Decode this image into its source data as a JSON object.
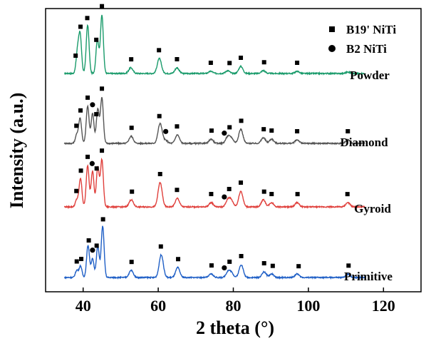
{
  "chart_data": {
    "type": "line",
    "xlabel": "2 theta (°)",
    "ylabel": "Intensity (a.u.)",
    "xlim": [
      30,
      130
    ],
    "xticks": [
      40,
      60,
      80,
      100,
      120
    ],
    "y_ticks_shown": false,
    "legend": {
      "placement": "top-right",
      "entries": [
        {
          "marker": "square",
          "label": "B19' NiTi"
        },
        {
          "marker": "circle",
          "label": "B2 NiTi"
        }
      ]
    },
    "series": [
      {
        "name": "Powder",
        "color": "#1a9b6b",
        "peaks": [
          [
            38.5,
            30
          ],
          [
            39.2,
            52
          ],
          [
            41.2,
            68
          ],
          [
            43.8,
            48
          ],
          [
            45.0,
            82
          ],
          [
            52.7,
            8
          ],
          [
            60.3,
            21
          ],
          [
            65.0,
            8
          ],
          [
            74.0,
            3
          ],
          [
            78.5,
            4
          ],
          [
            82.0,
            10
          ],
          [
            88.0,
            4
          ],
          [
            97.0,
            3
          ],
          [
            110.5,
            2
          ]
        ],
        "markers": [
          {
            "x": 38.0,
            "type": "square"
          },
          {
            "x": 39.3,
            "type": "square"
          },
          {
            "x": 41.1,
            "type": "square"
          },
          {
            "x": 43.5,
            "type": "square"
          },
          {
            "x": 45.0,
            "type": "square"
          },
          {
            "x": 52.8,
            "type": "square"
          },
          {
            "x": 60.2,
            "type": "square"
          },
          {
            "x": 65.0,
            "type": "square"
          },
          {
            "x": 74.0,
            "type": "square"
          },
          {
            "x": 79.0,
            "type": "square"
          },
          {
            "x": 82.0,
            "type": "square"
          },
          {
            "x": 88.2,
            "type": "square"
          },
          {
            "x": 97.0,
            "type": "square"
          }
        ]
      },
      {
        "name": "Diamond",
        "color": "#555555",
        "peaks": [
          [
            38.3,
            12
          ],
          [
            39.2,
            35
          ],
          [
            41.2,
            52
          ],
          [
            42.5,
            42
          ],
          [
            43.9,
            48
          ],
          [
            45.0,
            64
          ],
          [
            52.8,
            10
          ],
          [
            60.5,
            28
          ],
          [
            62.0,
            4
          ],
          [
            65.1,
            12
          ],
          [
            74.1,
            6
          ],
          [
            78.5,
            9
          ],
          [
            79.5,
            7
          ],
          [
            82.0,
            20
          ],
          [
            88.0,
            8
          ],
          [
            90.2,
            6
          ],
          [
            97.0,
            5
          ],
          [
            110.5,
            5
          ]
        ],
        "markers": [
          {
            "x": 38.2,
            "type": "square"
          },
          {
            "x": 39.3,
            "type": "square"
          },
          {
            "x": 41.2,
            "type": "square"
          },
          {
            "x": 42.5,
            "type": "circle"
          },
          {
            "x": 43.5,
            "type": "square"
          },
          {
            "x": 45.0,
            "type": "square"
          },
          {
            "x": 52.9,
            "type": "square"
          },
          {
            "x": 60.3,
            "type": "square"
          },
          {
            "x": 62.0,
            "type": "circle"
          },
          {
            "x": 65.0,
            "type": "square"
          },
          {
            "x": 74.2,
            "type": "square"
          },
          {
            "x": 77.6,
            "type": "circle"
          },
          {
            "x": 79.0,
            "type": "square"
          },
          {
            "x": 82.1,
            "type": "square"
          },
          {
            "x": 88.1,
            "type": "square"
          },
          {
            "x": 90.2,
            "type": "square"
          },
          {
            "x": 97.0,
            "type": "square"
          },
          {
            "x": 110.5,
            "type": "square"
          }
        ]
      },
      {
        "name": "Gyroid",
        "color": "#e0403c",
        "peaks": [
          [
            38.3,
            10
          ],
          [
            39.3,
            40
          ],
          [
            41.2,
            58
          ],
          [
            42.5,
            50
          ],
          [
            43.9,
            56
          ],
          [
            45.0,
            66
          ],
          [
            52.8,
            10
          ],
          [
            60.5,
            34
          ],
          [
            65.1,
            12
          ],
          [
            74.1,
            6
          ],
          [
            78.6,
            10
          ],
          [
            79.5,
            8
          ],
          [
            82.0,
            22
          ],
          [
            88.0,
            10
          ],
          [
            90.2,
            6
          ],
          [
            97.0,
            6
          ],
          [
            110.5,
            6
          ]
        ],
        "markers": [
          {
            "x": 38.2,
            "type": "square"
          },
          {
            "x": 39.4,
            "type": "square"
          },
          {
            "x": 41.2,
            "type": "square"
          },
          {
            "x": 42.4,
            "type": "circle"
          },
          {
            "x": 43.6,
            "type": "square"
          },
          {
            "x": 45.0,
            "type": "square"
          },
          {
            "x": 53.0,
            "type": "square"
          },
          {
            "x": 60.5,
            "type": "square"
          },
          {
            "x": 65.0,
            "type": "square"
          },
          {
            "x": 74.1,
            "type": "square"
          },
          {
            "x": 77.6,
            "type": "circle"
          },
          {
            "x": 78.9,
            "type": "square"
          },
          {
            "x": 82.0,
            "type": "square"
          },
          {
            "x": 88.2,
            "type": "square"
          },
          {
            "x": 90.2,
            "type": "square"
          },
          {
            "x": 97.1,
            "type": "square"
          },
          {
            "x": 110.4,
            "type": "square"
          }
        ]
      },
      {
        "name": "Primitive",
        "color": "#1f5fc6",
        "peaks": [
          [
            38.3,
            10
          ],
          [
            39.3,
            16
          ],
          [
            41.3,
            45
          ],
          [
            42.5,
            26
          ],
          [
            43.9,
            44
          ],
          [
            45.2,
            72
          ],
          [
            52.8,
            10
          ],
          [
            60.8,
            32
          ],
          [
            65.2,
            14
          ],
          [
            74.1,
            5
          ],
          [
            78.6,
            8
          ],
          [
            79.5,
            6
          ],
          [
            82.1,
            18
          ],
          [
            88.2,
            8
          ],
          [
            90.2,
            5
          ],
          [
            97.0,
            5
          ],
          [
            110.5,
            5
          ]
        ],
        "markers": [
          {
            "x": 38.3,
            "type": "square"
          },
          {
            "x": 39.5,
            "type": "square"
          },
          {
            "x": 41.5,
            "type": "square"
          },
          {
            "x": 42.5,
            "type": "circle"
          },
          {
            "x": 43.6,
            "type": "square"
          },
          {
            "x": 45.3,
            "type": "square"
          },
          {
            "x": 52.9,
            "type": "square"
          },
          {
            "x": 60.7,
            "type": "square"
          },
          {
            "x": 65.3,
            "type": "square"
          },
          {
            "x": 74.2,
            "type": "square"
          },
          {
            "x": 77.6,
            "type": "circle"
          },
          {
            "x": 79.0,
            "type": "square"
          },
          {
            "x": 82.1,
            "type": "square"
          },
          {
            "x": 88.2,
            "type": "square"
          },
          {
            "x": 90.5,
            "type": "square"
          },
          {
            "x": 97.4,
            "type": "square"
          },
          {
            "x": 110.7,
            "type": "square"
          }
        ]
      }
    ]
  }
}
